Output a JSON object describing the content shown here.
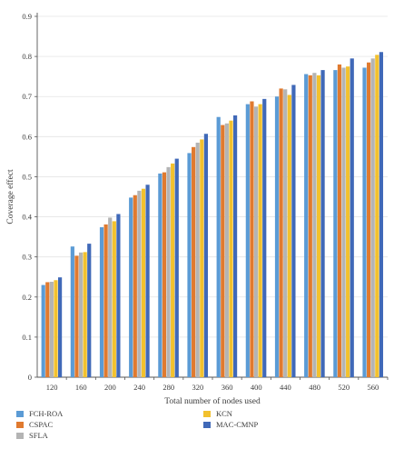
{
  "chart_data": {
    "type": "bar",
    "title": "",
    "xlabel": "Total number of nodes used",
    "ylabel": "Coverage effect",
    "ylim": [
      0,
      0.9
    ],
    "yticks": [
      "0",
      "0.1",
      "0.2",
      "0.3",
      "0.4",
      "0.5",
      "0.6",
      "0.7",
      "0.8",
      "0.9"
    ],
    "categories": [
      "120",
      "160",
      "200",
      "240",
      "280",
      "320",
      "360",
      "400",
      "440",
      "480",
      "520",
      "560"
    ],
    "grid": true,
    "legend_position": "bottom-left",
    "series": [
      {
        "name": "FCH-ROA",
        "color": "#5b9bd5",
        "values": [
          0.23,
          0.326,
          0.374,
          0.448,
          0.508,
          0.559,
          0.649,
          0.681,
          0.7,
          0.756,
          0.766,
          0.772
        ]
      },
      {
        "name": "CSPAC",
        "color": "#e07a2f",
        "values": [
          0.237,
          0.303,
          0.381,
          0.454,
          0.511,
          0.574,
          0.629,
          0.688,
          0.72,
          0.753,
          0.78,
          0.785
        ]
      },
      {
        "name": "SFLA",
        "color": "#b4b4b4",
        "values": [
          0.238,
          0.311,
          0.398,
          0.465,
          0.524,
          0.585,
          0.633,
          0.675,
          0.718,
          0.759,
          0.772,
          0.795
        ]
      },
      {
        "name": "KCN",
        "color": "#f2c12e",
        "values": [
          0.242,
          0.312,
          0.389,
          0.47,
          0.533,
          0.593,
          0.64,
          0.681,
          0.704,
          0.753,
          0.775,
          0.804
        ]
      },
      {
        "name": "MAC-CMNP",
        "color": "#4069b8",
        "values": [
          0.249,
          0.333,
          0.407,
          0.48,
          0.545,
          0.607,
          0.653,
          0.694,
          0.729,
          0.766,
          0.795,
          0.811
        ]
      }
    ]
  }
}
